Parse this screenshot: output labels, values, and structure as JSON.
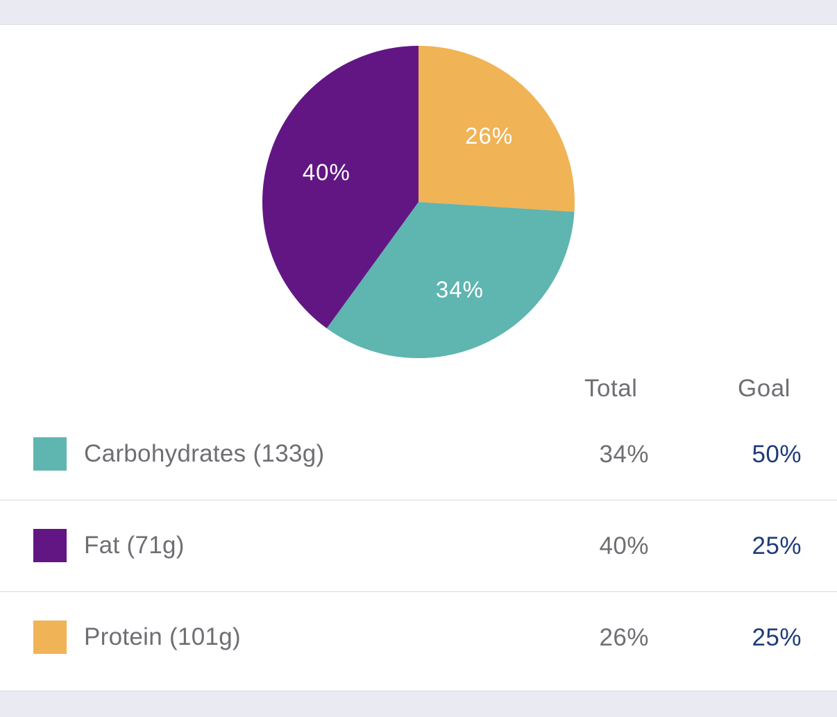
{
  "chart_data": {
    "type": "pie",
    "slices": [
      {
        "name": "Protein",
        "value": 26,
        "label": "26%",
        "color": "#F0B356"
      },
      {
        "name": "Carbohydrates",
        "value": 34,
        "label": "34%",
        "color": "#5FB5B0"
      },
      {
        "name": "Fat",
        "value": 40,
        "label": "40%",
        "color": "#621683"
      }
    ]
  },
  "table": {
    "header_total": "Total",
    "header_goal": "Goal",
    "rows": [
      {
        "label": "Carbohydrates (133g)",
        "total": "34%",
        "goal": "50%",
        "color": "#5FB5B0"
      },
      {
        "label": "Fat (71g)",
        "total": "40%",
        "goal": "25%",
        "color": "#621683"
      },
      {
        "label": "Protein (101g)",
        "total": "26%",
        "goal": "25%",
        "color": "#F0B356"
      }
    ]
  },
  "colors": {
    "goal_text": "#1E3A7B",
    "muted_text": "#6E6E73",
    "background": "#ECECF3"
  }
}
